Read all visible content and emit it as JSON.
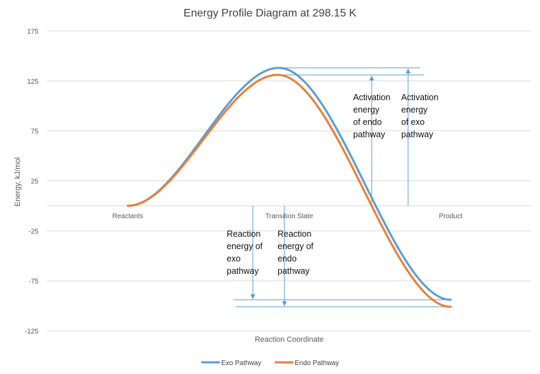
{
  "chart_data": {
    "type": "line",
    "title": "Energy Profile Diagram at 298.15 K",
    "ylabel": "Energy, kJ/mol",
    "xlabel": "Reaction Coordinate",
    "ylim": [
      -125,
      175
    ],
    "yticks": [
      175,
      125,
      75,
      25,
      -25,
      -75,
      -125
    ],
    "categories": [
      "Reactants",
      "Transition State",
      "Product"
    ],
    "series": [
      {
        "name": "Exo Pathway",
        "color": "#5B9BD5",
        "peak": 138,
        "start": 0,
        "end": -94
      },
      {
        "name": "Endo Pathway",
        "color": "#ED7D31",
        "peak": 131,
        "start": 0,
        "end": -101
      }
    ],
    "annotations": [
      {
        "lines": [
          "Activation",
          "energy",
          "of endo",
          "pathway"
        ]
      },
      {
        "lines": [
          "Activation",
          "energy",
          "of exo",
          "pathway"
        ]
      },
      {
        "lines": [
          "Reaction",
          "energy of",
          "exo",
          "pathway"
        ]
      },
      {
        "lines": [
          "Reaction",
          "energy of",
          "endo",
          "pathway"
        ]
      }
    ],
    "legend": {
      "position": "bottom"
    }
  }
}
